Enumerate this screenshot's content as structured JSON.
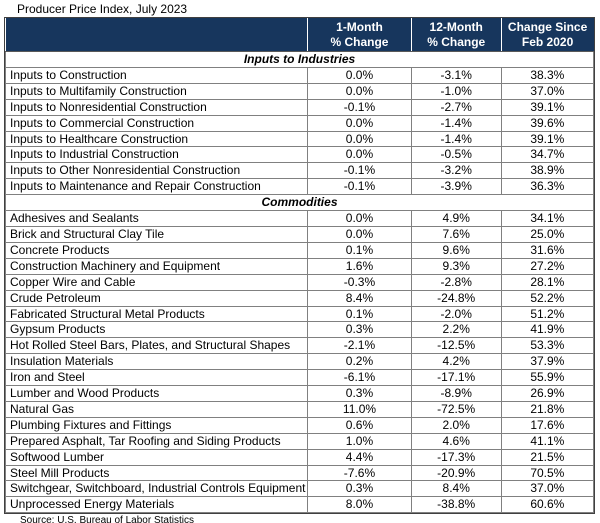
{
  "title": "Producer Price Index, July 2023",
  "source_note": "Source: U.S. Bureau of Labor Statistics",
  "colors": {
    "header_bg": "#17365D",
    "header_text": "#FFFFFF",
    "grid_line": "#808080"
  },
  "chart_data": {
    "type": "table",
    "title": "Producer Price Index, July 2023",
    "columns": [
      "",
      "1-Month % Change",
      "12-Month % Change",
      "Change Since Feb 2020"
    ],
    "column_headers": [
      {
        "line1": "",
        "line2": ""
      },
      {
        "line1": "1-Month",
        "line2": "% Change"
      },
      {
        "line1": "12-Month",
        "line2": "% Change"
      },
      {
        "line1": "Change Since",
        "line2": "Feb 2020"
      }
    ],
    "sections": [
      {
        "label": "Inputs to Industries",
        "rows": [
          [
            "Inputs to Construction",
            "0.0%",
            "-3.1%",
            "38.3%"
          ],
          [
            "Inputs to Multifamily Construction",
            "0.0%",
            "-1.0%",
            "37.0%"
          ],
          [
            "Inputs to Nonresidential Construction",
            "-0.1%",
            "-2.7%",
            "39.1%"
          ],
          [
            "Inputs to Commercial Construction",
            "0.0%",
            "-1.4%",
            "39.6%"
          ],
          [
            "Inputs to Healthcare Construction",
            "0.0%",
            "-1.4%",
            "39.1%"
          ],
          [
            "Inputs to Industrial Construction",
            "0.0%",
            "-0.5%",
            "34.7%"
          ],
          [
            "Inputs to Other Nonresidential Construction",
            "-0.1%",
            "-3.2%",
            "38.9%"
          ],
          [
            "Inputs to Maintenance and Repair Construction",
            "-0.1%",
            "-3.9%",
            "36.3%"
          ]
        ]
      },
      {
        "label": "Commodities",
        "rows": [
          [
            "Adhesives and Sealants",
            "0.0%",
            "4.9%",
            "34.1%"
          ],
          [
            "Brick and Structural Clay Tile",
            "0.0%",
            "7.6%",
            "25.0%"
          ],
          [
            "Concrete Products",
            "0.1%",
            "9.6%",
            "31.6%"
          ],
          [
            "Construction Machinery and Equipment",
            "1.6%",
            "9.3%",
            "27.2%"
          ],
          [
            "Copper Wire and Cable",
            "-0.3%",
            "-2.8%",
            "28.1%"
          ],
          [
            "Crude Petroleum",
            "8.4%",
            "-24.8%",
            "52.2%"
          ],
          [
            "Fabricated Structural Metal Products",
            "0.1%",
            "-2.0%",
            "51.2%"
          ],
          [
            "Gypsum Products",
            "0.3%",
            "2.2%",
            "41.9%"
          ],
          [
            "Hot Rolled Steel Bars, Plates, and Structural Shapes",
            "-2.1%",
            "-12.5%",
            "53.3%"
          ],
          [
            "Insulation Materials",
            "0.2%",
            "4.2%",
            "37.9%"
          ],
          [
            "Iron and Steel",
            "-6.1%",
            "-17.1%",
            "55.9%"
          ],
          [
            "Lumber and Wood Products",
            "0.3%",
            "-8.9%",
            "26.9%"
          ],
          [
            "Natural Gas",
            "11.0%",
            "-72.5%",
            "21.8%"
          ],
          [
            "Plumbing Fixtures and Fittings",
            "0.6%",
            "2.0%",
            "17.6%"
          ],
          [
            "Prepared Asphalt, Tar Roofing and Siding Products",
            "1.0%",
            "4.6%",
            "41.1%"
          ],
          [
            "Softwood Lumber",
            "4.4%",
            "-17.3%",
            "21.5%"
          ],
          [
            "Steel Mill Products",
            "-7.6%",
            "-20.9%",
            "70.5%"
          ],
          [
            "Switchgear, Switchboard, Industrial Controls Equipment",
            "0.3%",
            "8.4%",
            "37.0%"
          ],
          [
            "Unprocessed Energy Materials",
            "8.0%",
            "-38.8%",
            "60.6%"
          ]
        ]
      }
    ],
    "source": "Source: U.S. Bureau of Labor Statistics"
  }
}
